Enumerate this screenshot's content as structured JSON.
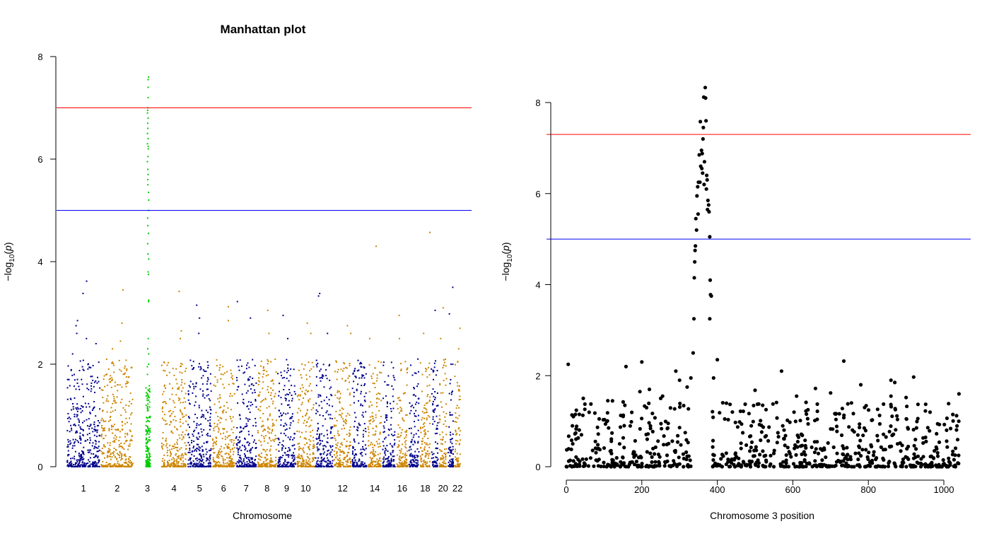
{
  "chart_data": [
    {
      "type": "scatter",
      "title": "Manhattan plot",
      "xlabel": "Chromosome",
      "ylabel": "-log10(p)",
      "ylim": [
        0,
        8
      ],
      "y_ticks": [
        0,
        2,
        4,
        6,
        8
      ],
      "x_tick_labels": [
        "1",
        "2",
        "3",
        "4",
        "5",
        "6",
        "7",
        "8",
        "9",
        "10",
        "12",
        "14",
        "16",
        "18",
        "20",
        "22"
      ],
      "x_tick_chromosomes": [
        1,
        2,
        3,
        4,
        5,
        6,
        7,
        8,
        9,
        10,
        12,
        14,
        16,
        18,
        20,
        22
      ],
      "chromosomes": [
        "1",
        "2",
        "3",
        "4",
        "5",
        "6",
        "7",
        "8",
        "9",
        "10",
        "11",
        "12",
        "13",
        "14",
        "15",
        "16",
        "17",
        "18",
        "19",
        "20",
        "21",
        "22"
      ],
      "colors": {
        "odd": "#00008B",
        "even": "#CD8500",
        "highlight": "#00CD00"
      },
      "highlight_chromosome": "3",
      "thresholds": [
        {
          "value": 7,
          "color": "#FF0000"
        },
        {
          "value": 5,
          "color": "#0000FF"
        }
      ],
      "series": [
        {
          "chromosome": "3",
          "highlight": true,
          "values": [
            7.6,
            7.55,
            7.4,
            7.2,
            7.0,
            6.95,
            6.9,
            6.8,
            6.7,
            6.6,
            6.5,
            6.4,
            6.3,
            6.25,
            6.2,
            6.05,
            5.95,
            5.8,
            5.7,
            5.6,
            5.5,
            5.35,
            5.2,
            5.0,
            4.85,
            4.7,
            4.55,
            4.35,
            4.15,
            4.05,
            3.8,
            3.75,
            3.25,
            3.22,
            2.5,
            2.3,
            2.2,
            2.0,
            1.95,
            1.8,
            1.5,
            1.3,
            1.1,
            0.9,
            0.7,
            0.5,
            0.3,
            0.1
          ]
        },
        {
          "chromosome": "1",
          "values": [
            3.62,
            3.38,
            2.85,
            2.75,
            2.6,
            2.5,
            2.4,
            2.2
          ]
        },
        {
          "chromosome": "2",
          "values": [
            3.45,
            2.8,
            2.45,
            2.3
          ]
        },
        {
          "chromosome": "4",
          "values": [
            3.42,
            2.65,
            2.5
          ]
        },
        {
          "chromosome": "5",
          "values": [
            3.15,
            2.9,
            2.6
          ]
        },
        {
          "chromosome": "6",
          "values": [
            3.12,
            2.85
          ]
        },
        {
          "chromosome": "7",
          "values": [
            3.22,
            2.9
          ]
        },
        {
          "chromosome": "8",
          "values": [
            3.05,
            2.6
          ]
        },
        {
          "chromosome": "9",
          "values": [
            2.95,
            2.5
          ]
        },
        {
          "chromosome": "10",
          "values": [
            2.8,
            2.6
          ]
        },
        {
          "chromosome": "11",
          "values": [
            3.38,
            3.33,
            2.6
          ]
        },
        {
          "chromosome": "12",
          "values": [
            2.75,
            2.6
          ]
        },
        {
          "chromosome": "14",
          "values": [
            4.3,
            2.5
          ]
        },
        {
          "chromosome": "16",
          "values": [
            2.95,
            2.5
          ]
        },
        {
          "chromosome": "18",
          "values": [
            4.57,
            2.6
          ]
        },
        {
          "chromosome": "19",
          "values": [
            3.05
          ]
        },
        {
          "chromosome": "20",
          "values": [
            3.1,
            2.5
          ]
        },
        {
          "chromosome": "21",
          "values": [
            3.5,
            2.98
          ]
        },
        {
          "chromosome": "22",
          "values": [
            2.7,
            2.3
          ]
        }
      ]
    },
    {
      "type": "scatter",
      "title": "",
      "xlabel": "Chromosome 3 position",
      "ylabel": "-log10(p)",
      "xlim": [
        0,
        1070
      ],
      "ylim": [
        0,
        8.4
      ],
      "x_ticks": [
        0,
        200,
        400,
        600,
        800,
        1000
      ],
      "y_ticks": [
        0,
        2,
        4,
        6,
        8
      ],
      "point_color": "#000000",
      "thresholds": [
        {
          "value": 7.3,
          "color": "#FF0000"
        },
        {
          "value": 5,
          "color": "#0000FF"
        }
      ],
      "points": [
        [
          368,
          8.33
        ],
        [
          364,
          8.12
        ],
        [
          369,
          8.1
        ],
        [
          355,
          7.58
        ],
        [
          370,
          7.6
        ],
        [
          363,
          7.45
        ],
        [
          362,
          7.2
        ],
        [
          358,
          6.95
        ],
        [
          360,
          6.88
        ],
        [
          352,
          6.85
        ],
        [
          366,
          6.7
        ],
        [
          356,
          6.6
        ],
        [
          359,
          6.55
        ],
        [
          361,
          6.45
        ],
        [
          372,
          6.4
        ],
        [
          373,
          6.3
        ],
        [
          350,
          6.25
        ],
        [
          354,
          6.25
        ],
        [
          365,
          6.2
        ],
        [
          348,
          6.15
        ],
        [
          371,
          6.1
        ],
        [
          346,
          5.95
        ],
        [
          375,
          5.85
        ],
        [
          377,
          5.75
        ],
        [
          374,
          5.65
        ],
        [
          378,
          5.6
        ],
        [
          349,
          5.55
        ],
        [
          343,
          5.45
        ],
        [
          345,
          5.2
        ],
        [
          380,
          5.05
        ],
        [
          342,
          4.85
        ],
        [
          341,
          4.75
        ],
        [
          340,
          4.5
        ],
        [
          339,
          4.15
        ],
        [
          381,
          4.1
        ],
        [
          382,
          3.78
        ],
        [
          384,
          3.75
        ],
        [
          338,
          3.25
        ],
        [
          380,
          3.25
        ],
        [
          336,
          2.5
        ],
        [
          5,
          2.25
        ],
        [
          158,
          2.2
        ],
        [
          200,
          2.3
        ],
        [
          290,
          2.1
        ],
        [
          400,
          2.35
        ],
        [
          570,
          2.1
        ],
        [
          735,
          2.32
        ],
        [
          920,
          1.97
        ],
        [
          860,
          1.9
        ],
        [
          330,
          1.95
        ],
        [
          390,
          1.95
        ],
        [
          220,
          1.7
        ],
        [
          195,
          1.65
        ],
        [
          300,
          1.9
        ],
        [
          320,
          1.75
        ],
        [
          660,
          1.72
        ],
        [
          780,
          1.8
        ],
        [
          870,
          1.85
        ],
        [
          1040,
          1.6
        ],
        [
          255,
          1.55
        ],
        [
          500,
          1.68
        ],
        [
          610,
          1.55
        ],
        [
          700,
          1.62
        ],
        [
          860,
          1.55
        ],
        [
          900,
          1.52
        ],
        [
          45,
          1.5
        ],
        [
          110,
          1.45
        ],
        [
          155,
          1.35
        ],
        [
          250,
          1.5
        ],
        [
          520,
          1.35
        ],
        [
          640,
          1.25
        ],
        [
          790,
          1.3
        ]
      ]
    }
  ]
}
